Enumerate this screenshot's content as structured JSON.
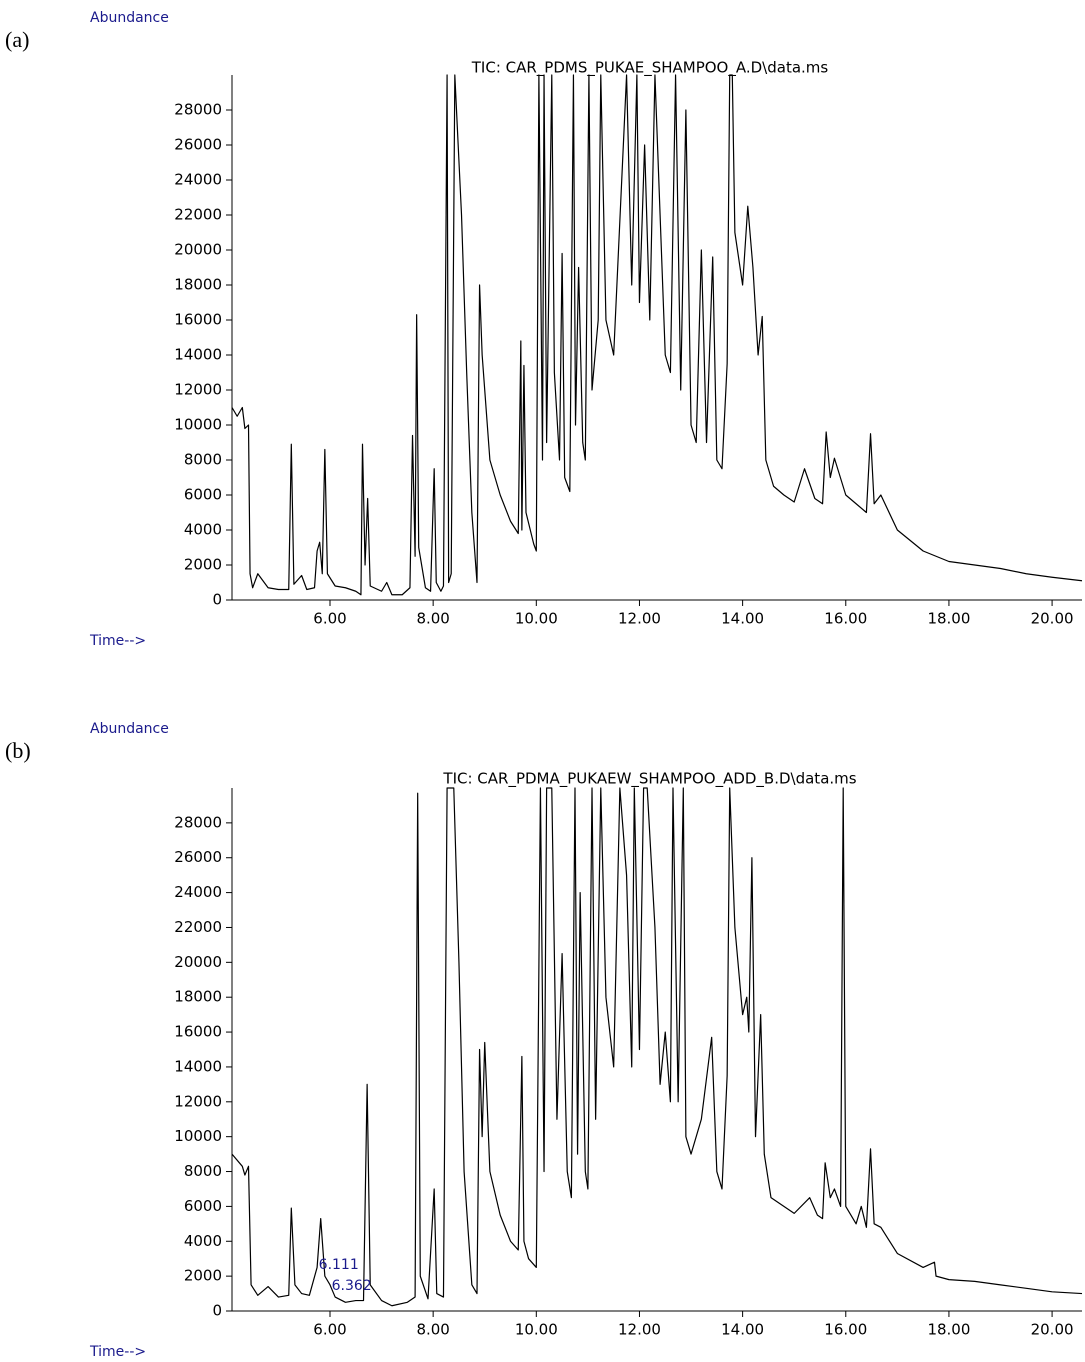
{
  "chart_data": [
    {
      "type": "line",
      "label": "(a)",
      "y_label": "Abundance",
      "x_label": "Time-->",
      "title": "TIC: CAR_PDMS_PUKAE_SHAMPOO_A.D\\data.ms",
      "x": [
        4.1,
        4.2,
        4.3,
        4.35,
        4.42,
        4.45,
        4.5,
        4.6,
        4.8,
        5.0,
        5.2,
        5.25,
        5.3,
        5.45,
        5.55,
        5.7,
        5.75,
        5.8,
        5.85,
        5.9,
        5.95,
        6.1,
        6.3,
        6.5,
        6.6,
        6.63,
        6.68,
        6.73,
        6.78,
        7.0,
        7.1,
        7.2,
        7.4,
        7.55,
        7.6,
        7.65,
        7.68,
        7.72,
        7.85,
        7.95,
        8.02,
        8.06,
        8.15,
        8.2,
        8.27,
        8.3,
        8.35,
        8.42,
        8.55,
        8.65,
        8.75,
        8.85,
        8.9,
        8.95,
        9.1,
        9.3,
        9.5,
        9.65,
        9.7,
        9.72,
        9.76,
        9.8,
        9.95,
        10.0,
        10.05,
        10.12,
        10.15,
        10.2,
        10.3,
        10.35,
        10.45,
        10.5,
        10.55,
        10.65,
        10.72,
        10.76,
        10.82,
        10.9,
        10.95,
        11.02,
        11.08,
        11.2,
        11.25,
        11.35,
        11.5,
        11.75,
        11.85,
        11.95,
        12.0,
        12.1,
        12.2,
        12.3,
        12.4,
        12.5,
        12.6,
        12.7,
        12.8,
        12.9,
        13.0,
        13.1,
        13.2,
        13.3,
        13.42,
        13.5,
        13.6,
        13.7,
        13.75,
        13.8,
        13.85,
        14.0,
        14.1,
        14.2,
        14.3,
        14.38,
        14.45,
        14.6,
        14.8,
        15.0,
        15.2,
        15.4,
        15.55,
        15.62,
        15.7,
        15.78,
        16.0,
        16.2,
        16.4,
        16.48,
        16.55,
        16.68,
        17.0,
        17.5,
        18.0,
        18.5,
        19.0,
        19.5,
        20.0,
        20.58
      ],
      "series": [
        {
          "color": "#000000",
          "values": [
            11000,
            10500,
            11000,
            9800,
            10000,
            1500,
            700,
            1500,
            700,
            600,
            600,
            8900,
            900,
            1400,
            600,
            700,
            2800,
            3300,
            1500,
            8600,
            1500,
            800,
            700,
            500,
            300,
            8900,
            2000,
            5800,
            800,
            500,
            1000,
            300,
            300,
            700,
            9400,
            2500,
            16300,
            3000,
            700,
            500,
            7500,
            1000,
            500,
            800,
            30000,
            1000,
            1500,
            30000,
            22000,
            13000,
            5000,
            1000,
            18000,
            14000,
            8000,
            6000,
            4500,
            3800,
            14800,
            4000,
            13400,
            5000,
            3200,
            2800,
            30000,
            8000,
            30000,
            9000,
            30000,
            13000,
            8000,
            19800,
            7000,
            6200,
            30000,
            10000,
            19000,
            9000,
            8000,
            30000,
            12000,
            16000,
            30000,
            16000,
            14000,
            30000,
            18000,
            30000,
            17000,
            26000,
            16000,
            30000,
            22000,
            14000,
            13000,
            30000,
            12000,
            28000,
            10000,
            9000,
            20000,
            9000,
            19600,
            8000,
            7500,
            13500,
            30000,
            30000,
            21000,
            18000,
            22500,
            19000,
            14000,
            16200,
            8000,
            6500,
            6000,
            5600,
            7500,
            5800,
            5500,
            9600,
            7000,
            8100,
            6000,
            5500,
            5000,
            9500,
            5500,
            6000,
            4000,
            2800,
            2200,
            2000,
            1800,
            1500,
            1300,
            1100
          ]
        }
      ],
      "xlim": [
        4.1,
        20.58
      ],
      "ylim": [
        0,
        30000
      ],
      "xticks": [
        {
          "value": 6,
          "label": "6.00"
        },
        {
          "value": 8,
          "label": "8.00"
        },
        {
          "value": 10,
          "label": "10.00"
        },
        {
          "value": 12,
          "label": "12.00"
        },
        {
          "value": 14,
          "label": "14.00"
        },
        {
          "value": 16,
          "label": "16.00"
        },
        {
          "value": 18,
          "label": "18.00"
        },
        {
          "value": 20,
          "label": "20.00"
        }
      ],
      "yticks": [
        0,
        2000,
        4000,
        6000,
        8000,
        10000,
        12000,
        14000,
        16000,
        18000,
        20000,
        22000,
        24000,
        26000,
        28000
      ]
    },
    {
      "type": "line",
      "label": "(b)",
      "y_label": "Abundance",
      "x_label": "Time-->",
      "title": "TIC: CAR_PDMA_PUKAEW_SHAMPOO_ADD_B.D\\data.ms",
      "x": [
        4.1,
        4.3,
        4.35,
        4.42,
        4.47,
        4.6,
        4.8,
        5.0,
        5.2,
        5.25,
        5.32,
        5.45,
        5.6,
        5.75,
        5.82,
        5.9,
        6.0,
        6.1,
        6.3,
        6.5,
        6.65,
        6.72,
        6.78,
        7.0,
        7.2,
        7.5,
        7.65,
        7.7,
        7.75,
        7.9,
        8.02,
        8.07,
        8.2,
        8.27,
        8.4,
        8.5,
        8.6,
        8.75,
        8.85,
        8.9,
        8.95,
        9.0,
        9.1,
        9.3,
        9.5,
        9.65,
        9.72,
        9.76,
        9.85,
        10.0,
        10.08,
        10.15,
        10.2,
        10.3,
        10.4,
        10.5,
        10.6,
        10.68,
        10.75,
        10.8,
        10.85,
        10.95,
        11.0,
        11.08,
        11.15,
        11.25,
        11.35,
        11.5,
        11.62,
        11.75,
        11.85,
        11.9,
        12.0,
        12.08,
        12.15,
        12.3,
        12.4,
        12.5,
        12.6,
        12.65,
        12.75,
        12.85,
        12.9,
        13.0,
        13.2,
        13.4,
        13.5,
        13.6,
        13.7,
        13.75,
        13.85,
        14.0,
        14.08,
        14.12,
        14.18,
        14.25,
        14.35,
        14.42,
        14.55,
        14.8,
        15.0,
        15.3,
        15.45,
        15.55,
        15.6,
        15.7,
        15.78,
        15.9,
        15.95,
        16.0,
        16.2,
        16.3,
        16.4,
        16.48,
        16.55,
        16.68,
        17.0,
        17.5,
        17.72,
        17.75,
        18.0,
        18.5,
        19.0,
        19.5,
        20.0,
        20.58
      ],
      "series": [
        {
          "color": "#000000",
          "values": [
            9000,
            8300,
            7800,
            8300,
            1500,
            900,
            1400,
            800,
            900,
            5900,
            1500,
            1000,
            900,
            2500,
            5300,
            2000,
            1500,
            800,
            500,
            600,
            600,
            13000,
            1500,
            600,
            300,
            500,
            800,
            29700,
            2000,
            700,
            7000,
            1000,
            800,
            30000,
            30000,
            20000,
            8000,
            1500,
            1000,
            15000,
            10000,
            15400,
            8000,
            5500,
            4000,
            3500,
            14600,
            4000,
            3000,
            2500,
            30000,
            8000,
            30000,
            30000,
            11000,
            20500,
            8000,
            6500,
            30000,
            9000,
            24000,
            8000,
            7000,
            30000,
            11000,
            30000,
            18000,
            14000,
            30000,
            25000,
            14000,
            30000,
            15000,
            30000,
            30000,
            22000,
            13000,
            16000,
            12000,
            30000,
            12000,
            30000,
            10000,
            9000,
            11000,
            15700,
            8000,
            7000,
            13500,
            30000,
            22000,
            17000,
            18000,
            16000,
            26000,
            10000,
            17000,
            9000,
            6500,
            6000,
            5600,
            6500,
            5500,
            5300,
            8500,
            6500,
            7000,
            6000,
            30000,
            6000,
            5000,
            6000,
            4800,
            9300,
            5000,
            4800,
            3300,
            2500,
            2800,
            2000,
            1800,
            1700,
            1500,
            1300,
            1100,
            1000
          ]
        }
      ],
      "peak_labels": [
        6.111,
        6.362
      ],
      "xlim": [
        4.1,
        20.58
      ],
      "ylim": [
        0,
        30000
      ],
      "xticks": [
        {
          "value": 6,
          "label": "6.00"
        },
        {
          "value": 8,
          "label": "8.00"
        },
        {
          "value": 10,
          "label": "10.00"
        },
        {
          "value": 12,
          "label": "12.00"
        },
        {
          "value": 14,
          "label": "14.00"
        },
        {
          "value": 16,
          "label": "16.00"
        },
        {
          "value": 18,
          "label": "18.00"
        },
        {
          "value": 20,
          "label": "20.00"
        }
      ],
      "yticks": [
        0,
        2000,
        4000,
        6000,
        8000,
        10000,
        12000,
        14000,
        16000,
        18000,
        20000,
        22000,
        24000,
        26000,
        28000
      ]
    }
  ]
}
